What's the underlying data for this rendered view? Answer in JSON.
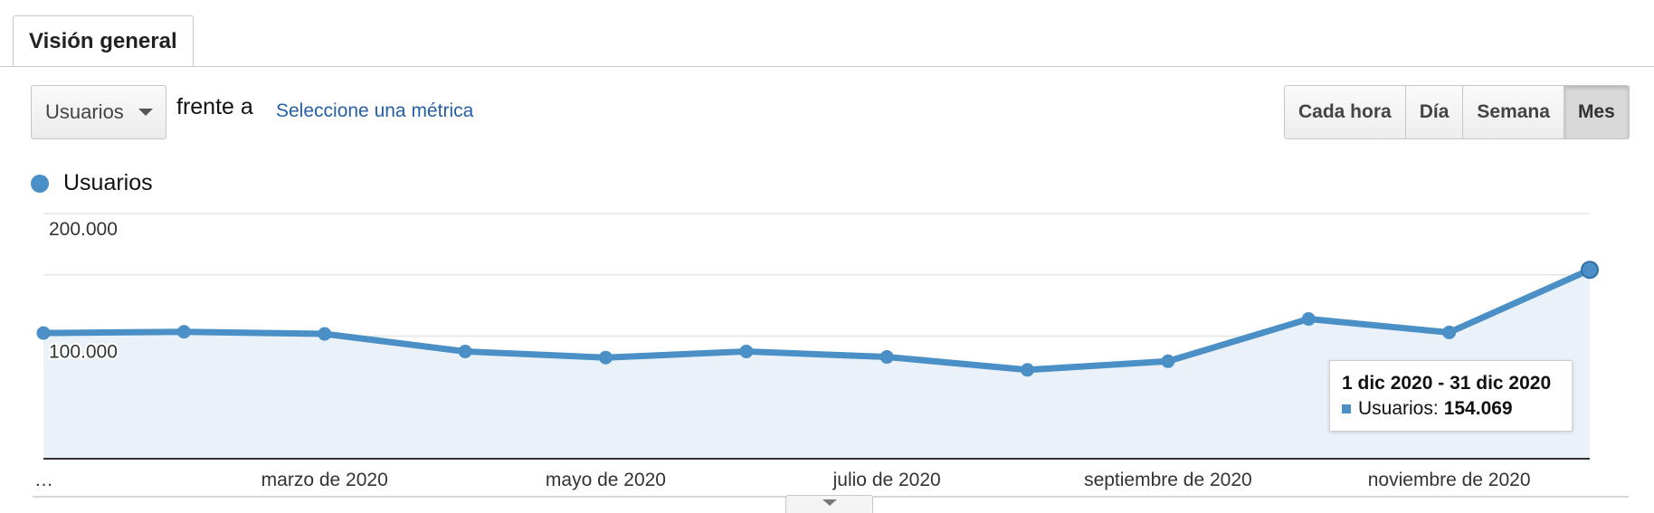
{
  "tab": {
    "label": "Visión general"
  },
  "metric_selector": {
    "value": "Usuarios"
  },
  "compare_label": "frente a",
  "select_metric_link": "Seleccione una métrica",
  "granularity": {
    "options": [
      "Cada hora",
      "Día",
      "Semana",
      "Mes"
    ],
    "selected": "Mes"
  },
  "legend": {
    "label": "Usuarios",
    "color": "#4a90c6"
  },
  "tooltip": {
    "title": "1 dic 2020 - 31 dic 2020",
    "series_label": "Usuarios:",
    "value": "154.069"
  },
  "chart_data": {
    "type": "area",
    "series": [
      {
        "name": "Usuarios",
        "color": "#4a90c6",
        "values": [
          102500,
          103500,
          101800,
          87500,
          82500,
          87500,
          83000,
          72500,
          79500,
          114000,
          103000,
          154069
        ]
      }
    ],
    "x_tick_labels": [
      "…",
      "marzo de 2020",
      "mayo de 2020",
      "julio de 2020",
      "septiembre de 2020",
      "noviembre de 2020"
    ],
    "x_tick_positions": [
      0,
      2,
      4,
      6,
      8,
      10
    ],
    "y_tick_labels": [
      "200.000",
      "100.000"
    ],
    "y_ticks": [
      200000,
      100000
    ],
    "ylim": [
      0,
      200000
    ],
    "grid": true,
    "highlighted_index": 11
  }
}
